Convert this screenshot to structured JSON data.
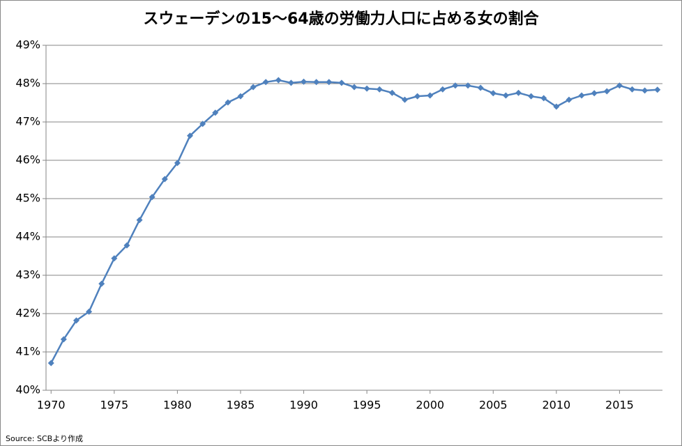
{
  "chart_data": {
    "type": "line",
    "title": "スウェーデンの15～64歳の労働力人口に占める女の割合",
    "source": "Source: SCBより作成",
    "x": [
      1970,
      1971,
      1972,
      1973,
      1974,
      1975,
      1976,
      1977,
      1978,
      1979,
      1980,
      1981,
      1982,
      1983,
      1984,
      1985,
      1986,
      1987,
      1988,
      1989,
      1990,
      1991,
      1992,
      1993,
      1994,
      1995,
      1996,
      1997,
      1998,
      1999,
      2000,
      2001,
      2002,
      2003,
      2004,
      2005,
      2006,
      2007,
      2008,
      2009,
      2010,
      2011,
      2012,
      2013,
      2014,
      2015,
      2016,
      2017,
      2018
    ],
    "series": [
      {
        "color": "#4f81bd",
        "values": [
          40.71,
          41.33,
          41.82,
          42.05,
          42.78,
          43.44,
          43.78,
          44.44,
          45.04,
          45.51,
          45.93,
          46.64,
          46.95,
          47.24,
          47.51,
          47.67,
          47.91,
          48.04,
          48.09,
          48.02,
          48.05,
          48.04,
          48.04,
          48.02,
          47.91,
          47.87,
          47.85,
          47.76,
          47.58,
          47.67,
          47.69,
          47.85,
          47.95,
          47.95,
          47.89,
          47.75,
          47.69,
          47.76,
          47.67,
          47.62,
          47.4,
          47.58,
          47.69,
          47.75,
          47.8,
          47.95,
          47.85,
          47.82,
          47.84
        ]
      }
    ],
    "xlim": [
      1969.6,
      2018.4
    ],
    "xticks": [
      1970,
      1975,
      1980,
      1985,
      1990,
      1995,
      2000,
      2005,
      2010,
      2015
    ],
    "ylim": [
      40,
      49
    ],
    "yticks": [
      {
        "value": 40,
        "label": "40%"
      },
      {
        "value": 41,
        "label": "41%"
      },
      {
        "value": 42,
        "label": "42%"
      },
      {
        "value": 43,
        "label": "43%"
      },
      {
        "value": 44,
        "label": "44%"
      },
      {
        "value": 45,
        "label": "45%"
      },
      {
        "value": 46,
        "label": "46%"
      },
      {
        "value": 47,
        "label": "47%"
      },
      {
        "value": 48,
        "label": "48%"
      },
      {
        "value": 49,
        "label": "49%"
      }
    ],
    "grid": true
  }
}
